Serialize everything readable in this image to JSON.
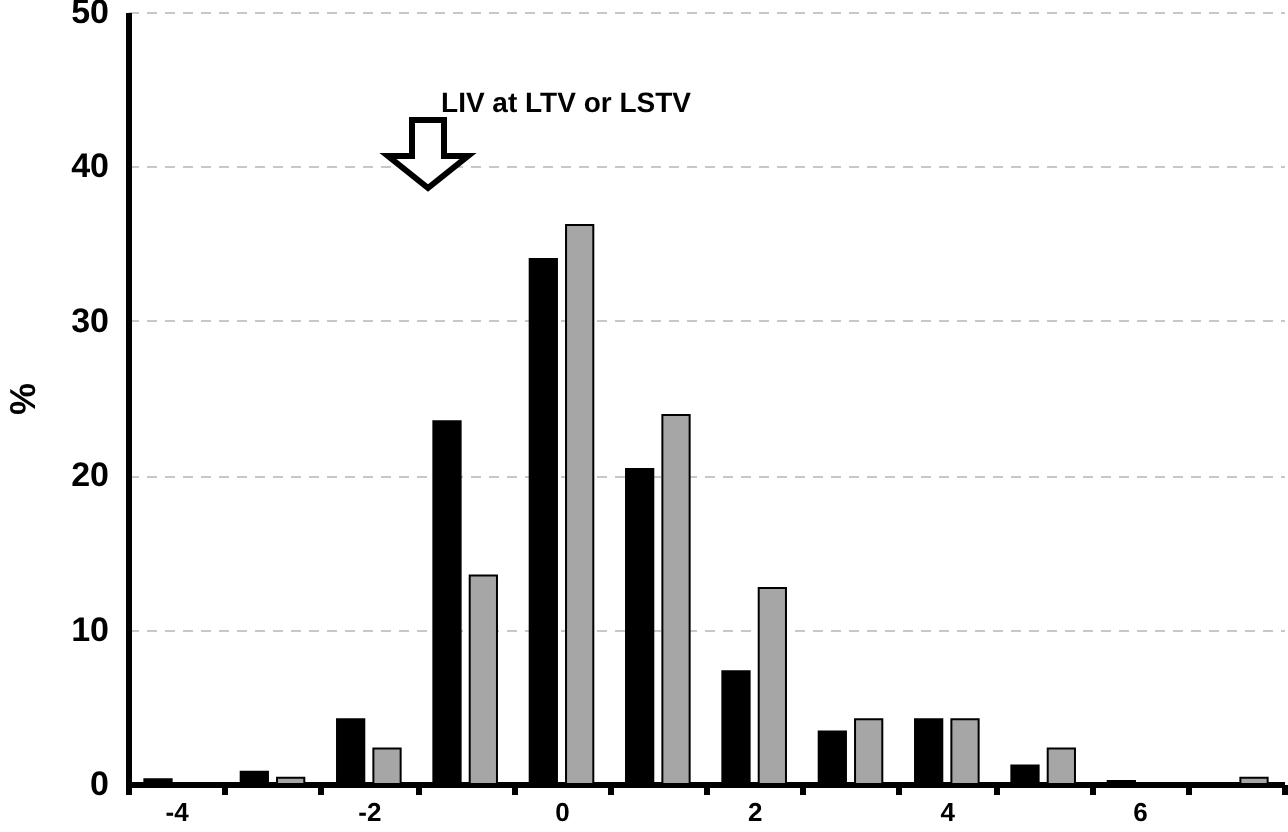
{
  "chart_data": {
    "type": "bar",
    "ylabel": "%",
    "categories": [
      "-4",
      null,
      "-2",
      null,
      "0",
      null,
      "2",
      null,
      "4",
      null,
      "6",
      null
    ],
    "series": [
      {
        "color": "#000000",
        "values": [
          0.3,
          0.8,
          4.2,
          23.5,
          34,
          20.4,
          7.3,
          3.4,
          4.2,
          1.2,
          0.2,
          null
        ]
      },
      {
        "color": "#a6a6a6",
        "values": [
          null,
          0.4,
          2.3,
          13.5,
          36.2,
          23.9,
          12.7,
          4.2,
          4.2,
          2.3,
          null,
          0.4
        ]
      }
    ],
    "ylim": [
      0,
      50
    ],
    "yticks": [
      0,
      10,
      20,
      30,
      40,
      50
    ],
    "grid": "y",
    "annotations": [
      "LIV at LTV or LSTV"
    ]
  }
}
